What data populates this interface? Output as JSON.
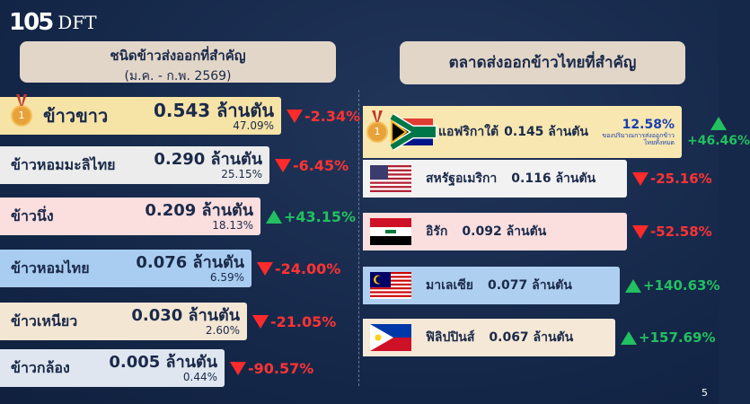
{
  "logo": {
    "number": "105",
    "brand": "DFT"
  },
  "left_title": {
    "title": "ชนิดข้าวส่งออกที่สำคัญ",
    "subtitle": "(ม.ค. - ก.พ. 2569)"
  },
  "right_title": "ตลาดส่งออกข้าวไทยที่สำคัญ",
  "rice_types": [
    {
      "name": "ข้าวขาว",
      "volume": "0.543 ล้านตัน",
      "share": "47.09%",
      "change": "-2.34%",
      "direction": "down",
      "color": "#f6e3a6"
    },
    {
      "name": "ข้าวหอมมะลิไทย",
      "volume": "0.290 ล้านตัน",
      "share": "25.15%",
      "change": "-6.45%",
      "direction": "down",
      "color": "#ececec"
    },
    {
      "name": "ข้าวนึ่ง",
      "volume": "0.209 ล้านตัน",
      "share": "18.13%",
      "change": "+43.15%",
      "direction": "up",
      "color": "#fbdede"
    },
    {
      "name": "ข้าวหอมไทย",
      "volume": "0.076 ล้านตัน",
      "share": "6.59%",
      "change": "-24.00%",
      "direction": "down",
      "color": "#a9cdf0"
    },
    {
      "name": "ข้าวเหนียว",
      "volume": "0.030 ล้านตัน",
      "share": "2.60%",
      "change": "-21.05%",
      "direction": "down",
      "color": "#f3e6d3"
    },
    {
      "name": "ข้าวกล้อง",
      "volume": "0.005 ล้านตัน",
      "share": "0.44%",
      "change": "-90.57%",
      "direction": "down",
      "color": "#dfe6ef"
    }
  ],
  "markets": [
    {
      "name": "แอฟริกาใต้",
      "volume": "0.145 ล้านตัน",
      "share": "12.58%",
      "share_note": "ของปริมาณการส่งออกข้าวไทยทั้งหมด",
      "change": "+46.46%",
      "direction": "up",
      "flag": "south-africa"
    },
    {
      "name": "สหรัฐอเมริกา",
      "volume": "0.116 ล้านตัน",
      "change": "-25.16%",
      "direction": "down",
      "flag": "usa"
    },
    {
      "name": "อิรัก",
      "volume": "0.092 ล้านตัน",
      "change": "-52.58%",
      "direction": "down",
      "flag": "iraq"
    },
    {
      "name": "มาเลเซีย",
      "volume": "0.077 ล้านตัน",
      "change": "+140.63%",
      "direction": "up",
      "flag": "malaysia"
    },
    {
      "name": "ฟิลิปปินส์",
      "volume": "0.067 ล้านตัน",
      "change": "+157.69%",
      "direction": "up",
      "flag": "philippines"
    }
  ],
  "medal_label": "1",
  "page_number": "5"
}
